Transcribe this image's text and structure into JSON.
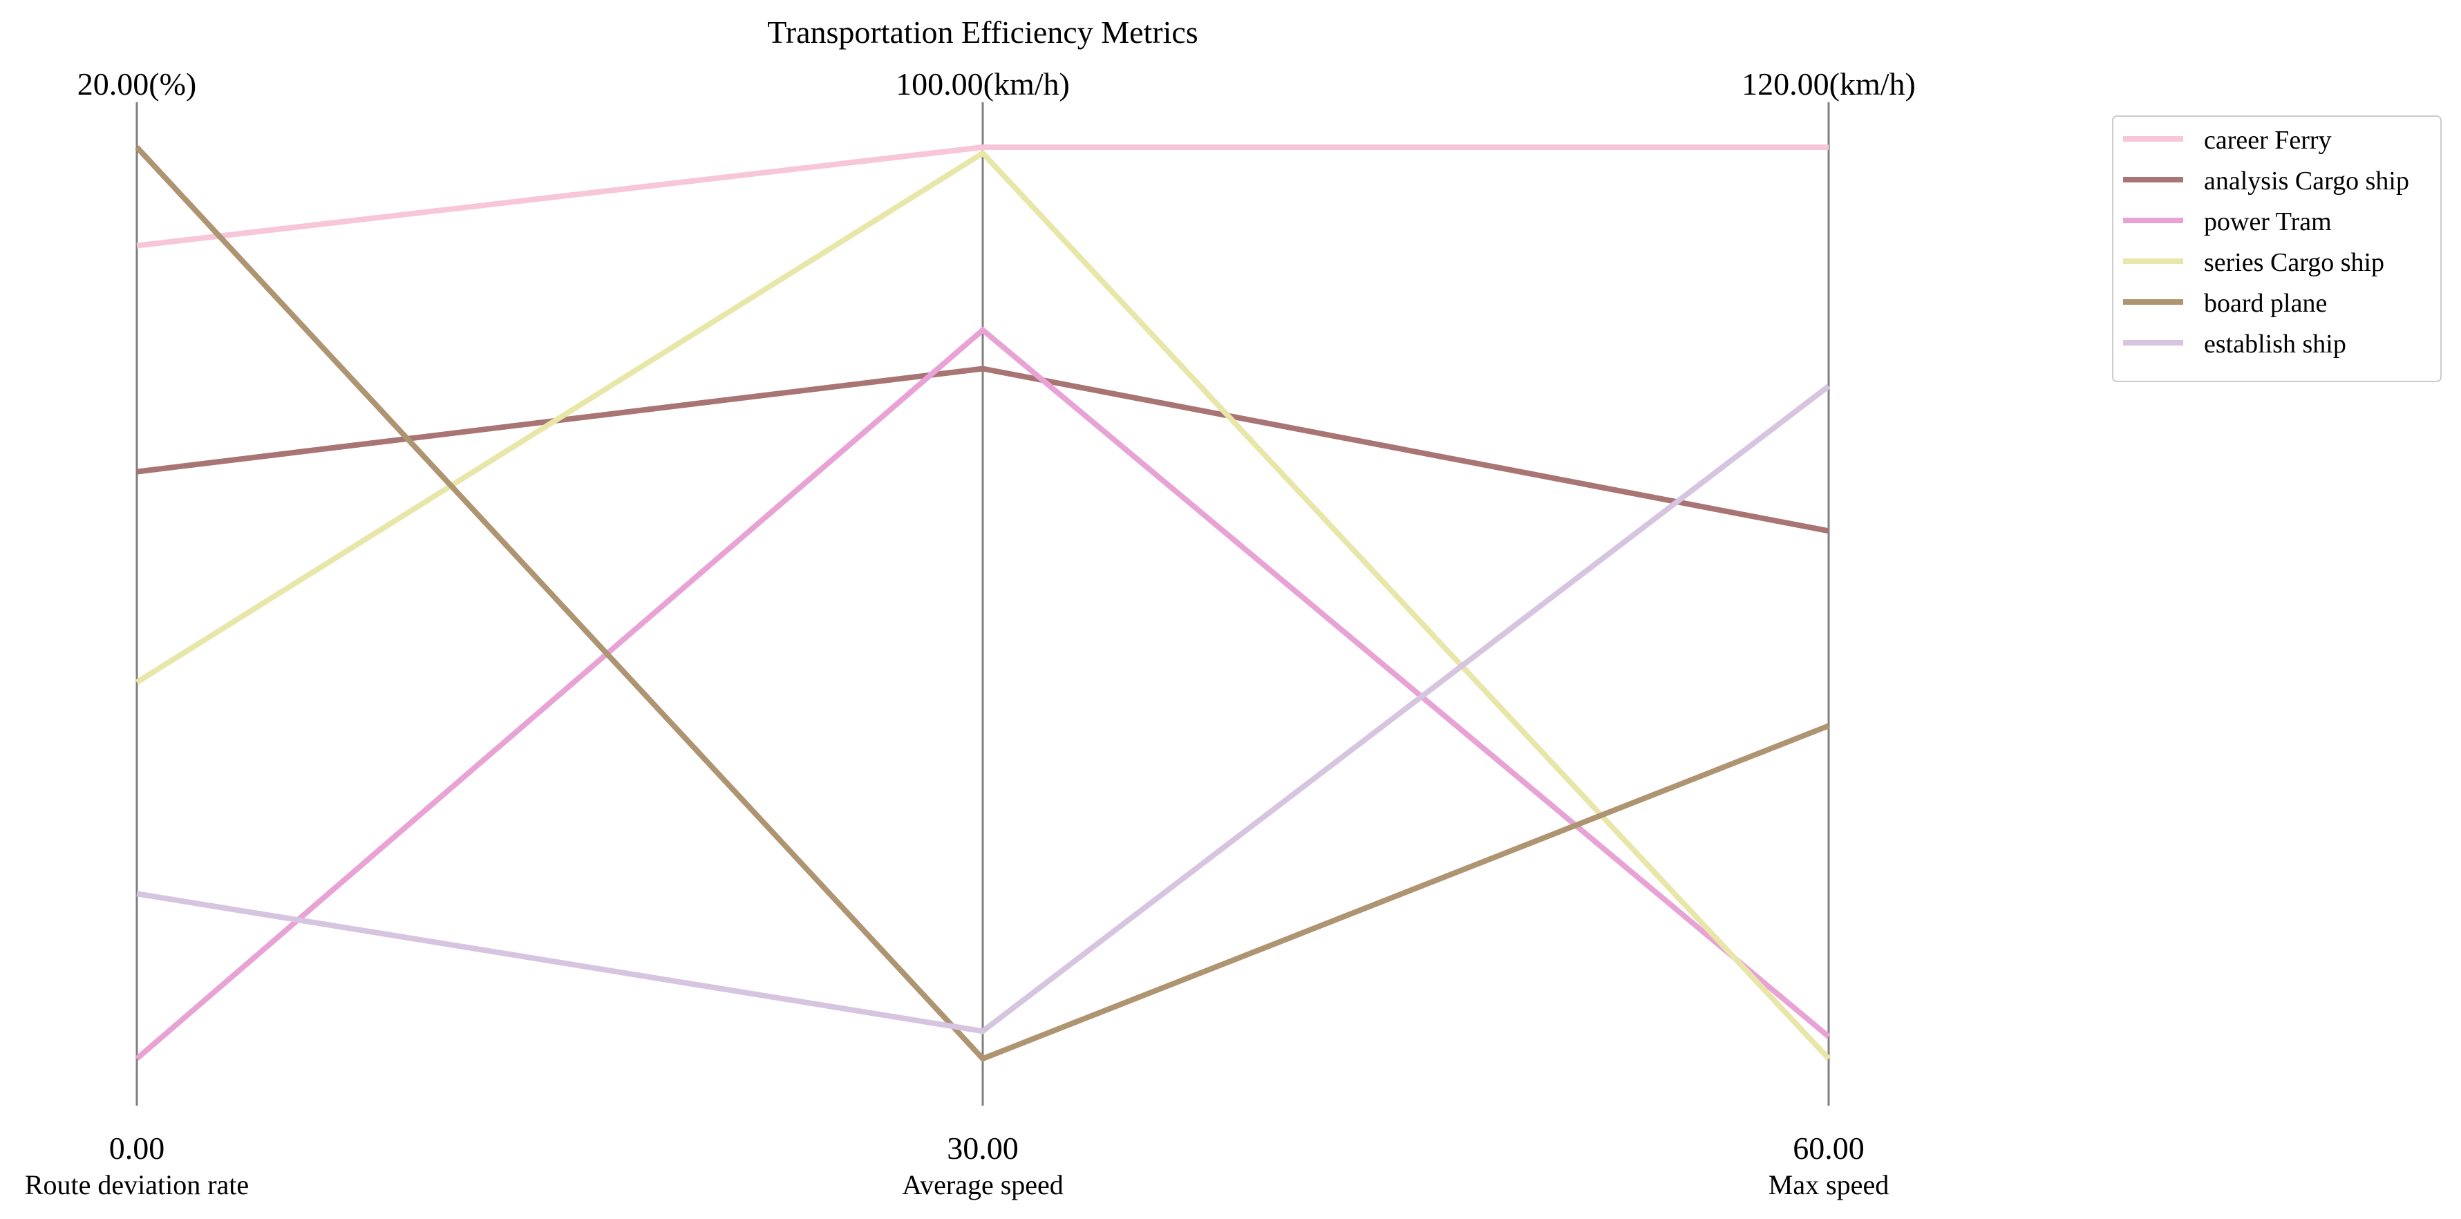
{
  "chart_data": {
    "type": "parallel_coordinates",
    "title": "Transportation Efficiency Metrics",
    "axes": [
      {
        "label": "Route deviation rate",
        "unit": "%",
        "min": 0,
        "max": 20,
        "min_label": "0.00",
        "max_label": "20.00(%)"
      },
      {
        "label": "Average speed",
        "unit": "km/h",
        "min": 30,
        "max": 100,
        "min_label": "30.00",
        "max_label": "100.00(km/h)"
      },
      {
        "label": "Max speed",
        "unit": "km/h",
        "min": 60,
        "max": 120,
        "min_label": "60.00",
        "max_label": "120.00(km/h)"
      }
    ],
    "series": [
      {
        "name": "career Ferry",
        "color": "#f7c6d9",
        "values": [
          17.84,
          100.0,
          120.0
        ]
      },
      {
        "name": "analysis Cargo ship",
        "color": "#a87474",
        "values": [
          12.88,
          82.99,
          94.74
        ]
      },
      {
        "name": "power Tram",
        "color": "#e9a2d6",
        "values": [
          0.0,
          85.96,
          61.45
        ]
      },
      {
        "name": "series Cargo ship",
        "color": "#e8e6a8",
        "values": [
          8.26,
          99.54,
          60.0
        ]
      },
      {
        "name": "board plane",
        "color": "#ae9470",
        "values": [
          20.0,
          30.0,
          81.91
        ]
      },
      {
        "name": "establish ship",
        "color": "#d6c4e0",
        "values": [
          3.62,
          32.11,
          104.27
        ]
      }
    ],
    "legend_position": "upper-right",
    "grid": false
  }
}
